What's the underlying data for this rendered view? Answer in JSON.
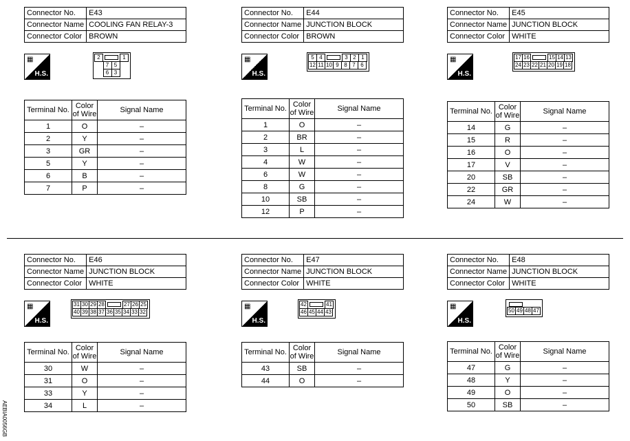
{
  "labels": {
    "connector_no": "Connector No.",
    "connector_name": "Connector Name",
    "connector_color": "Connector Color",
    "terminal_no": "Terminal No.",
    "color_of_wire": "Color of Wire",
    "signal_name": "Signal Name",
    "hs": "H.S."
  },
  "connectors": [
    {
      "no": "E43",
      "name": "COOLING FAN RELAY-3",
      "color": "BROWN",
      "pins": [
        [
          "2",
          "",
          "1"
        ],
        [
          "7",
          "5"
        ],
        [
          "6",
          "3"
        ]
      ],
      "rows": [
        [
          "1",
          "O",
          "–"
        ],
        [
          "2",
          "Y",
          "–"
        ],
        [
          "3",
          "GR",
          "–"
        ],
        [
          "5",
          "Y",
          "–"
        ],
        [
          "6",
          "B",
          "–"
        ],
        [
          "7",
          "P",
          "–"
        ]
      ]
    },
    {
      "no": "E44",
      "name": "JUNCTION BLOCK",
      "color": "BROWN",
      "pins": [
        [
          "5",
          "4",
          "",
          "3",
          "2",
          "1"
        ],
        [
          "12",
          "11",
          "10",
          "9",
          "8",
          "7",
          "6"
        ]
      ],
      "rows": [
        [
          "1",
          "O",
          "–"
        ],
        [
          "2",
          "BR",
          "–"
        ],
        [
          "3",
          "L",
          "–"
        ],
        [
          "4",
          "W",
          "–"
        ],
        [
          "6",
          "W",
          "–"
        ],
        [
          "8",
          "G",
          "–"
        ],
        [
          "10",
          "SB",
          "–"
        ],
        [
          "12",
          "P",
          "–"
        ]
      ]
    },
    {
      "no": "E45",
      "name": "JUNCTION BLOCK",
      "color": "WHITE",
      "pins": [
        [
          "17",
          "16",
          "",
          "15",
          "14",
          "13"
        ],
        [
          "24",
          "23",
          "22",
          "21",
          "20",
          "19",
          "18"
        ]
      ],
      "rows": [
        [
          "14",
          "G",
          "–"
        ],
        [
          "15",
          "R",
          "–"
        ],
        [
          "16",
          "O",
          "–"
        ],
        [
          "17",
          "V",
          "–"
        ],
        [
          "20",
          "SB",
          "–"
        ],
        [
          "22",
          "GR",
          "–"
        ],
        [
          "24",
          "W",
          "–"
        ]
      ]
    },
    {
      "no": "E46",
      "name": "JUNCTION BLOCK",
      "color": "WHITE",
      "pins": [
        [
          "31",
          "30",
          "29",
          "28",
          "",
          "27",
          "26",
          "25"
        ],
        [
          "40",
          "39",
          "38",
          "37",
          "36",
          "35",
          "34",
          "33",
          "32"
        ]
      ],
      "rows": [
        [
          "30",
          "W",
          "–"
        ],
        [
          "31",
          "O",
          "–"
        ],
        [
          "33",
          "Y",
          "–"
        ],
        [
          "34",
          "L",
          "–"
        ]
      ]
    },
    {
      "no": "E47",
      "name": "JUNCTION BLOCK",
      "color": "WHITE",
      "pins": [
        [
          "42",
          "",
          "41"
        ],
        [
          "46",
          "45",
          "44",
          "43"
        ]
      ],
      "rows": [
        [
          "43",
          "SB",
          "–"
        ],
        [
          "44",
          "O",
          "–"
        ]
      ]
    },
    {
      "no": "E48",
      "name": "JUNCTION BLOCK",
      "color": "WHITE",
      "pins": [
        [
          ""
        ],
        [
          "50",
          "49",
          "48",
          "47"
        ]
      ],
      "rows": [
        [
          "47",
          "G",
          "–"
        ],
        [
          "48",
          "Y",
          "–"
        ],
        [
          "49",
          "O",
          "–"
        ],
        [
          "50",
          "SB",
          "–"
        ]
      ]
    }
  ],
  "figure_code": "AEBIA0056GB"
}
